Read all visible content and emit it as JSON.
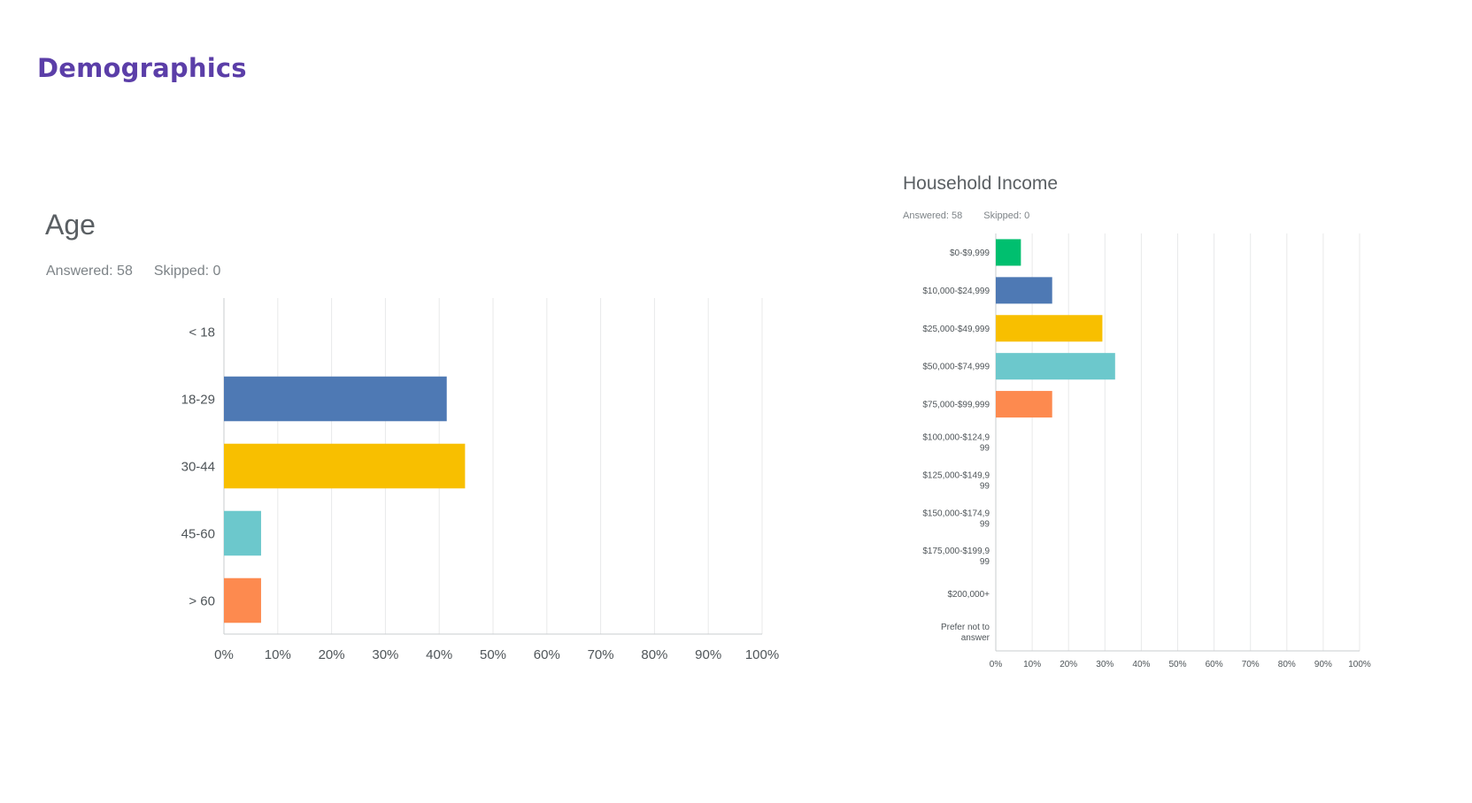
{
  "page": {
    "title": "Demographics"
  },
  "charts": {
    "age": {
      "answered_label": "Answered: 58",
      "skipped_label": "Skipped: 0"
    },
    "income": {
      "answered_label": "Answered: 58",
      "skipped_label": "Skipped: 0"
    }
  },
  "chart_data": [
    {
      "id": "age",
      "type": "bar",
      "orientation": "horizontal",
      "title": "Age",
      "categories": [
        "< 18",
        "18-29",
        "30-44",
        "45-60",
        "> 60"
      ],
      "category_lines": [
        [
          "< 18"
        ],
        [
          "18-29"
        ],
        [
          "30-44"
        ],
        [
          "45-60"
        ],
        [
          "> 60"
        ]
      ],
      "values": [
        0,
        41.4,
        44.8,
        6.9,
        6.9
      ],
      "colors": [
        "#4e79b4",
        "#4e79b4",
        "#f8bf00",
        "#6cc8cc",
        "#fd8a4f"
      ],
      "xlim": [
        0,
        100
      ],
      "xticks": [
        "0%",
        "10%",
        "20%",
        "30%",
        "40%",
        "50%",
        "60%",
        "70%",
        "80%",
        "90%",
        "100%"
      ],
      "grid": true
    },
    {
      "id": "income",
      "type": "bar",
      "orientation": "horizontal",
      "title": "Household Income",
      "categories": [
        "$0-$9,999",
        "$10,000-$24,999",
        "$25,000-$49,999",
        "$50,000-$74,999",
        "$75,000-$99,999",
        "$100,000-$124,999",
        "$125,000-$149,999",
        "$150,000-$174,999",
        "$175,000-$199,999",
        "$200,000+",
        "Prefer not to answer"
      ],
      "category_lines": [
        [
          "$0-$9,999"
        ],
        [
          "$10,000-$24,999"
        ],
        [
          "$25,000-$49,999"
        ],
        [
          "$50,000-$74,999"
        ],
        [
          "$75,000-$99,999"
        ],
        [
          "$100,000-$124,9",
          "99"
        ],
        [
          "$125,000-$149,9",
          "99"
        ],
        [
          "$150,000-$174,9",
          "99"
        ],
        [
          "$175,000-$199,9",
          "99"
        ],
        [
          "$200,000+"
        ],
        [
          "Prefer not to",
          "answer"
        ]
      ],
      "values": [
        6.9,
        15.5,
        29.3,
        32.8,
        15.5,
        0,
        0,
        0,
        0,
        0,
        0
      ],
      "colors": [
        "#00bf6f",
        "#4e79b4",
        "#f8bf00",
        "#6cc8cc",
        "#fd8a4f",
        "#4e79b4",
        "#4e79b4",
        "#4e79b4",
        "#4e79b4",
        "#4e79b4",
        "#4e79b4"
      ],
      "xlim": [
        0,
        100
      ],
      "xticks": [
        "0%",
        "10%",
        "20%",
        "30%",
        "40%",
        "50%",
        "60%",
        "70%",
        "80%",
        "90%",
        "100%"
      ],
      "grid": true
    }
  ]
}
